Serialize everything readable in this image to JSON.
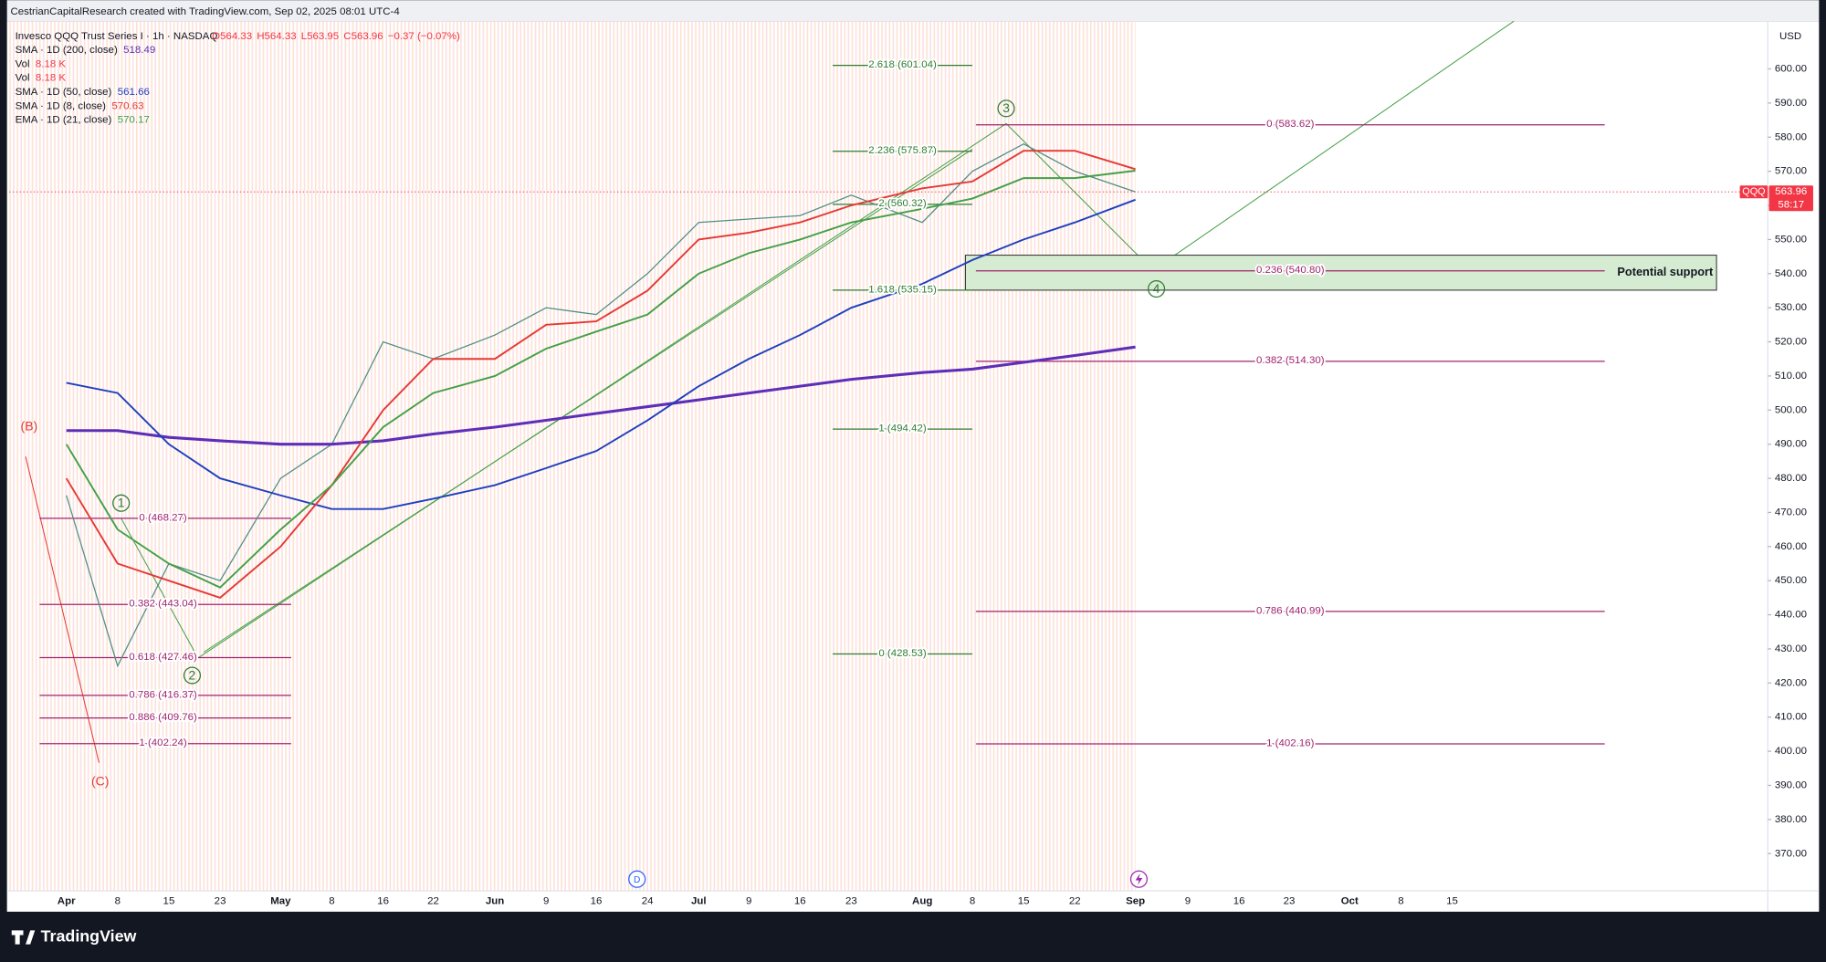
{
  "header": {
    "attribution": "CestrianCapitalResearch created with TradingView.com, Sep 02, 2025 08:01 UTC-4"
  },
  "footer": {
    "brand": "TradingView"
  },
  "chart_data": {
    "type": "line",
    "title": "Invesco QQQ Trust Series I · 1h · NASDAQ",
    "ohlc": [
      "O564.33",
      "H564.33",
      "L563.95",
      "C563.96",
      "−0.37 (−0.07%)"
    ],
    "currency": "USD",
    "symbol": "QQQ",
    "countdown": "58:17",
    "categories": [
      "Apr",
      "8",
      "15",
      "23",
      "May",
      "8",
      "16",
      "22",
      "Jun",
      "9",
      "16",
      "24",
      "Jul",
      "9",
      "16",
      "23",
      "Aug",
      "8",
      "15",
      "22",
      "Sep",
      "9",
      "16",
      "23",
      "Oct",
      "8",
      "15"
    ],
    "price": {
      "color": "#4f8f86",
      "values": [
        475,
        425,
        455,
        450,
        480,
        490,
        520,
        515,
        522,
        530,
        528,
        540,
        555,
        556,
        557,
        563,
        555,
        570,
        578,
        570,
        563.96,
        null,
        null,
        null,
        null,
        null,
        null
      ]
    },
    "series": [
      {
        "name": "SMA · 1D (200, close)",
        "color": "#5e2eb8",
        "values": [
          494,
          494,
          492,
          491,
          490,
          490,
          491,
          493,
          495,
          497,
          499,
          501,
          503,
          505,
          507,
          509,
          511,
          512,
          514,
          516,
          518.49,
          null,
          null,
          null,
          null,
          null,
          null
        ]
      },
      {
        "name": "SMA · 1D (50, close)",
        "color": "#1e3fbf",
        "values": [
          508,
          505,
          490,
          480,
          475,
          471,
          471,
          474,
          478,
          483,
          488,
          497,
          507,
          515,
          522,
          530,
          537,
          544,
          550,
          555,
          561.66,
          null,
          null,
          null,
          null,
          null,
          null
        ]
      },
      {
        "name": "SMA · 1D (8, close)",
        "color": "#e53935",
        "values": [
          480,
          455,
          450,
          445,
          460,
          478,
          500,
          515,
          515,
          525,
          526,
          535,
          550,
          552,
          555,
          560,
          565,
          567,
          576,
          576,
          570.63,
          null,
          null,
          null,
          null,
          null,
          null
        ]
      },
      {
        "name": "EMA · 1D (21, close)",
        "color": "#43a047",
        "values": [
          490,
          465,
          455,
          448,
          465,
          478,
          495,
          505,
          510,
          518,
          523,
          528,
          540,
          546,
          550,
          555,
          559,
          562,
          568,
          568,
          570.17,
          null,
          null,
          null,
          null,
          null,
          null
        ]
      }
    ],
    "volume_legend": [
      {
        "name": "Vol",
        "value": "8.18 K"
      },
      {
        "name": "Vol",
        "value": "8.18 K"
      }
    ],
    "ylim": [
      359.1,
      614
    ],
    "yticks": [
      {
        "value": 370,
        "label": "370.00"
      },
      {
        "value": 380,
        "label": "380.00"
      },
      {
        "value": 390,
        "label": "390.00"
      },
      {
        "value": 400,
        "label": "400.00"
      },
      {
        "value": 410,
        "label": "410.00"
      },
      {
        "value": 420,
        "label": "420.00"
      },
      {
        "value": 430,
        "label": "430.00"
      },
      {
        "value": 440,
        "label": "440.00"
      },
      {
        "value": 450,
        "label": "450.00"
      },
      {
        "value": 460,
        "label": "460.00"
      },
      {
        "value": 470,
        "label": "470.00"
      },
      {
        "value": 480,
        "label": "480.00"
      },
      {
        "value": 490,
        "label": "490.00"
      },
      {
        "value": 500,
        "label": "500.00"
      },
      {
        "value": 510,
        "label": "510.00"
      },
      {
        "value": 520,
        "label": "520.00"
      },
      {
        "value": 530,
        "label": "530.00"
      },
      {
        "value": 540,
        "label": "540.00"
      },
      {
        "value": 550,
        "label": "550.00"
      },
      {
        "value": 560,
        "label": "560.00"
      },
      {
        "value": 570,
        "label": "570.00"
      },
      {
        "value": 580,
        "label": "580.00"
      },
      {
        "value": 590,
        "label": "590.00"
      },
      {
        "value": 600,
        "label": "600.00"
      }
    ],
    "grid": false,
    "fib_levels": [
      {
        "color": "#a0246e",
        "levels": [
          {
            "value": 468.27,
            "label": "0 (468.27)"
          },
          {
            "value": 443.04,
            "label": "0.382 (443.04)"
          },
          {
            "value": 427.46,
            "label": "0.618 (427.46)"
          },
          {
            "value": 416.37,
            "label": "0.786 (416.37)"
          },
          {
            "value": 409.76,
            "label": "0.886 (409.76)"
          },
          {
            "value": 402.24,
            "label": "1 (402.24)"
          }
        ]
      },
      {
        "color": "#2e7d32",
        "levels": [
          {
            "value": 601.04,
            "label": "2.618 (601.04)"
          },
          {
            "value": 575.87,
            "label": "2.236 (575.87)"
          },
          {
            "value": 560.32,
            "label": "2 (560.32)"
          },
          {
            "value": 535.15,
            "label": "1.618 (535.15)"
          },
          {
            "value": 494.42,
            "label": "1 (494.42)"
          },
          {
            "value": 428.53,
            "label": "0 (428.53)"
          }
        ]
      },
      {
        "color": "#a0246e",
        "levels": [
          {
            "value": 583.62,
            "label": "0 (583.62)"
          },
          {
            "value": 540.8,
            "label": "0.236 (540.80)"
          },
          {
            "value": 514.3,
            "label": "0.382 (514.30)"
          },
          {
            "value": 440.99,
            "label": "0.786 (440.99)"
          },
          {
            "value": 402.16,
            "label": "1 (402.16)"
          }
        ]
      }
    ],
    "zone": {
      "label": "Potential support",
      "range": [
        535.15,
        545.4
      ],
      "color": "#d6ecd2"
    },
    "wave_labels": [
      "(B)",
      "(C)",
      "1",
      "2",
      "3",
      "4"
    ],
    "event_marker": "D"
  }
}
